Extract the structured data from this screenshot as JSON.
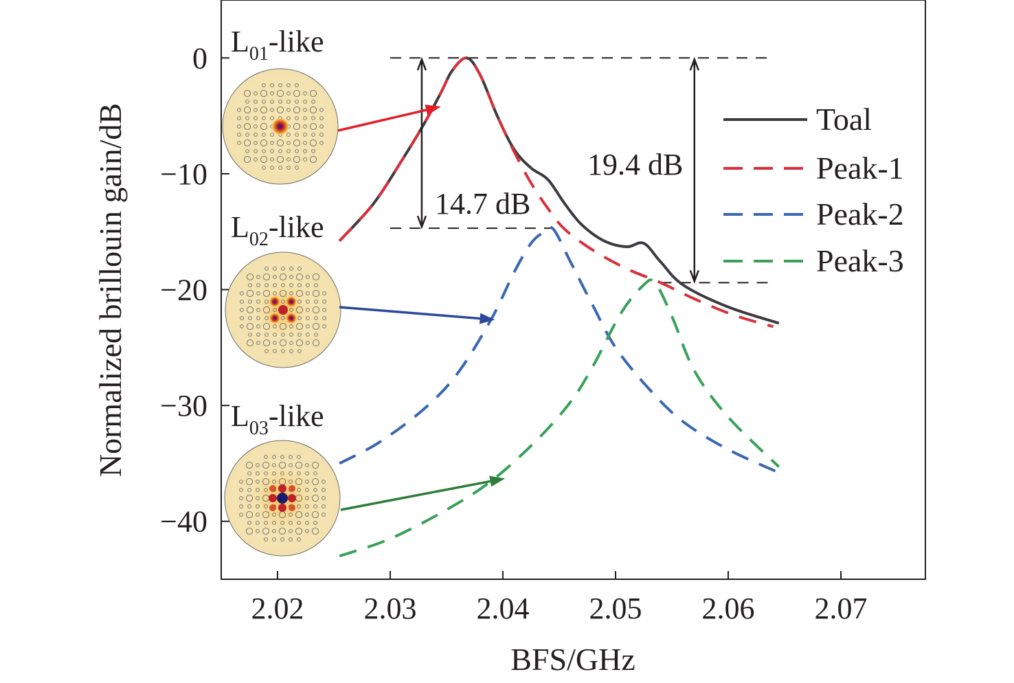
{
  "chart_data": {
    "type": "line",
    "xlabel": "BFS/GHz",
    "ylabel": "Normalized brillouin gain/dB",
    "xlim": [
      2.015,
      2.0775
    ],
    "ylim": [
      -45,
      5
    ],
    "xticks": [
      2.02,
      2.03,
      2.04,
      2.05,
      2.06,
      2.07
    ],
    "xtick_labels": [
      "2.02",
      "2.03",
      "2.04",
      "2.05",
      "2.06",
      "2.07"
    ],
    "yticks": [
      0,
      -10,
      -20,
      -30,
      -40
    ],
    "ytick_labels": [
      "0",
      "−10",
      "−20",
      "−30",
      "−40"
    ],
    "grid": false,
    "legend_position": "right",
    "series": [
      {
        "name": "Toal",
        "color": "#3b3b3f",
        "dash": "solid",
        "x": [
          2.0255,
          2.0285,
          2.031,
          2.033,
          2.0345,
          2.0355,
          2.0368,
          2.038,
          2.0395,
          2.041,
          2.0425,
          2.044,
          2.0455,
          2.047,
          2.049,
          2.051,
          2.0525,
          2.054,
          2.056,
          2.06,
          2.0645
        ],
        "values": [
          -15.8,
          -12.6,
          -8.9,
          -5.7,
          -3.0,
          -1.1,
          0.0,
          -1.5,
          -5.0,
          -7.9,
          -9.5,
          -10.5,
          -12.6,
          -14.4,
          -15.8,
          -16.3,
          -16.0,
          -17.6,
          -19.6,
          -21.5,
          -22.9
        ]
      },
      {
        "name": "Peak-1",
        "color": "#d8313b",
        "dash": "dashed",
        "x": [
          2.0255,
          2.0285,
          2.031,
          2.033,
          2.0345,
          2.0355,
          2.0368,
          2.038,
          2.0395,
          2.041,
          2.0425,
          2.044,
          2.0455,
          2.048,
          2.051,
          2.054,
          2.057,
          2.0605,
          2.064
        ],
        "values": [
          -15.8,
          -12.6,
          -8.9,
          -5.7,
          -3.0,
          -1.1,
          0.0,
          -1.5,
          -5.0,
          -8.1,
          -10.8,
          -13.0,
          -14.8,
          -16.6,
          -18.2,
          -19.4,
          -20.8,
          -22.2,
          -23.2
        ]
      },
      {
        "name": "Peak-2",
        "color": "#3a67b1",
        "dash": "dashed",
        "x": [
          2.0255,
          2.029,
          2.033,
          2.036,
          2.039,
          2.041,
          2.0425,
          2.0437,
          2.0445,
          2.046,
          2.048,
          2.05,
          2.053,
          2.056,
          2.06,
          2.0645
        ],
        "values": [
          -35.0,
          -33.2,
          -30.3,
          -27.2,
          -22.5,
          -18.5,
          -16.0,
          -15.0,
          -14.8,
          -17.6,
          -21.4,
          -25.0,
          -28.6,
          -31.4,
          -33.8,
          -35.8
        ]
      },
      {
        "name": "Peak-3",
        "color": "#3aa05a",
        "dash": "dashed",
        "x": [
          2.0255,
          2.03,
          2.035,
          2.039,
          2.043,
          2.046,
          2.048,
          2.0505,
          2.0525,
          2.0535,
          2.055,
          2.057,
          2.06,
          2.0645
        ],
        "values": [
          -43.0,
          -41.5,
          -39.0,
          -36.5,
          -33.0,
          -29.7,
          -26.6,
          -22.0,
          -19.6,
          -19.4,
          -22.3,
          -27.0,
          -31.0,
          -35.3
        ]
      }
    ],
    "annotations": {
      "gap1_label": "14.7 dB",
      "gap2_label": "19.4 dB",
      "gap1": {
        "x": 2.0328,
        "from": 0,
        "to": -14.7
      },
      "gap2": {
        "x": 2.057,
        "from": 0,
        "to": -19.4
      },
      "ref_lines": [
        {
          "y": 0,
          "x_from": 2.03,
          "x_to": 2.0635
        },
        {
          "y": -14.7,
          "x_from": 2.03,
          "x_to": 2.0445
        },
        {
          "y": -19.4,
          "x_from": 2.054,
          "x_to": 2.0635
        }
      ]
    },
    "mode_insets": [
      {
        "label_main": "L",
        "label_sub": "01",
        "label_tail": "-like",
        "arrow_color": "#e21f26",
        "arrow_to": {
          "x": 2.0345,
          "y": -4.2
        }
      },
      {
        "label_main": "L",
        "label_sub": "02",
        "label_tail": "-like",
        "arrow_color": "#2d479b",
        "arrow_to": {
          "x": 2.0393,
          "y": -22.6
        }
      },
      {
        "label_main": "L",
        "label_sub": "03",
        "label_tail": "-like",
        "arrow_color": "#2e7d3a",
        "arrow_to": {
          "x": 2.0402,
          "y": -36.3
        }
      }
    ]
  }
}
